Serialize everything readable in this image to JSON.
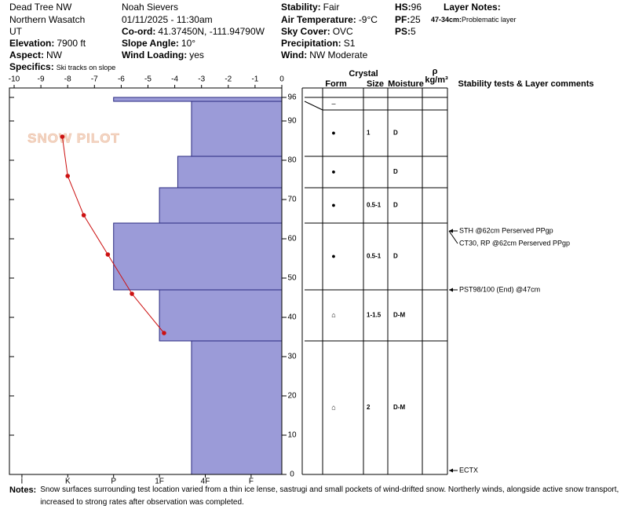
{
  "header": {
    "location": "Dead Tree NW",
    "range": "Northern Wasatch",
    "state": "UT",
    "elevation": {
      "label": "Elevation:",
      "value": "7900 ft"
    },
    "aspect": {
      "label": "Aspect:",
      "value": "NW"
    },
    "specifics": {
      "label": "Specifics:",
      "value": "Ski tracks on slope"
    },
    "observer": "Noah Sievers",
    "datetime": "01/11/2025 - 11:30am",
    "coord": {
      "label": "Co-ord:",
      "value": "41.37450N, -111.94790W"
    },
    "slope": {
      "label": "Slope Angle:",
      "value": "10°"
    },
    "wind_loading": {
      "label": "Wind Loading:",
      "value": "yes"
    },
    "stability": {
      "label": "Stability:",
      "value": "Fair"
    },
    "air_temp": {
      "label": "Air Temperature:",
      "value": "-9°C"
    },
    "sky": {
      "label": "Sky Cover:",
      "value": "OVC"
    },
    "precip": {
      "label": "Precipitation:",
      "value": "S1"
    },
    "wind": {
      "label": "Wind:",
      "value": "NW Moderate"
    },
    "hs": {
      "label": "HS:",
      "value": "96"
    },
    "pf": {
      "label": "PF:",
      "value": "25"
    },
    "ps": {
      "label": "PS:",
      "value": "5"
    },
    "layer_notes": {
      "label": "Layer Notes:",
      "range": "47-34cm:",
      "text": "Problematic layer"
    }
  },
  "chart_data": {
    "type": "snow-profile",
    "logo": "SNOW PILOT",
    "xlim": [
      -10,
      0
    ],
    "xticks": [
      -10,
      -9,
      -8,
      -7,
      -6,
      -5,
      -4,
      -3,
      -2,
      -1,
      0
    ],
    "ylim": [
      0,
      98.4
    ],
    "yticks": [
      0,
      10,
      20,
      30,
      40,
      50,
      60,
      70,
      80,
      90,
      96
    ],
    "hardness_lim": [
      0.33,
      6.17
    ],
    "hardness_ticks": [
      {
        "value": 6,
        "label": "I"
      },
      {
        "value": 5,
        "label": "K"
      },
      {
        "value": 4,
        "label": "P"
      },
      {
        "value": 3,
        "label": "1F"
      },
      {
        "value": 2,
        "label": "4F"
      },
      {
        "value": 1,
        "label": "F"
      }
    ],
    "bar_color": "#9b9bd8",
    "bar_edge": "#2a2a80",
    "temp_color": "#cc1111",
    "columns": {
      "crystal": "Crystal",
      "form": "Form",
      "size": "Size",
      "moisture": "Moisture",
      "rho": "ρ",
      "rho_unit": "kg/m³",
      "tests": "Stability tests & Layer comments"
    },
    "layers": [
      {
        "top": 96,
        "bottom": 95,
        "hardness": 4,
        "form": "–"
      },
      {
        "top": 95,
        "bottom": 81,
        "hardness": 2.3,
        "form": "●",
        "size": "1",
        "moisture": "D"
      },
      {
        "top": 81,
        "bottom": 73,
        "hardness": 2.6,
        "form": "●",
        "moisture": "D"
      },
      {
        "top": 73,
        "bottom": 64,
        "hardness": 3,
        "form": "●",
        "size": "0.5-1",
        "moisture": "D"
      },
      {
        "top": 64,
        "bottom": 47,
        "hardness": 4,
        "form": "●",
        "size": "0.5-1",
        "moisture": "D"
      },
      {
        "top": 47,
        "bottom": 34,
        "hardness": 3,
        "form": "⌂",
        "size": "1-1.5",
        "moisture": "D-M"
      },
      {
        "top": 34,
        "bottom": 0,
        "hardness": 2.3,
        "form": "⌂",
        "size": "2",
        "moisture": "D-M"
      }
    ],
    "temperature": {
      "depths": [
        86,
        76,
        66,
        56,
        46,
        36
      ],
      "values": [
        -8.2,
        -8,
        -7.4,
        -6.5,
        -5.6,
        -4.4
      ]
    },
    "tests": [
      {
        "text": "STH @62cm Perserved PPgp",
        "depth": 62
      },
      {
        "text": "CT30, RP @62cm Perserved PPgp",
        "depth": 62
      },
      {
        "text": "PST98/100 (End) @47cm",
        "depth": 47
      },
      {
        "text": "ECTX",
        "depth": 1
      }
    ]
  },
  "notes": {
    "label": "Notes:",
    "text": "Snow surfaces surrounding test location varied from a thin ice lense, sastrugi and small pockets of wind-drifted snow. Northerly winds, alongside active snow transport, increased to strong rates after observation was completed."
  }
}
